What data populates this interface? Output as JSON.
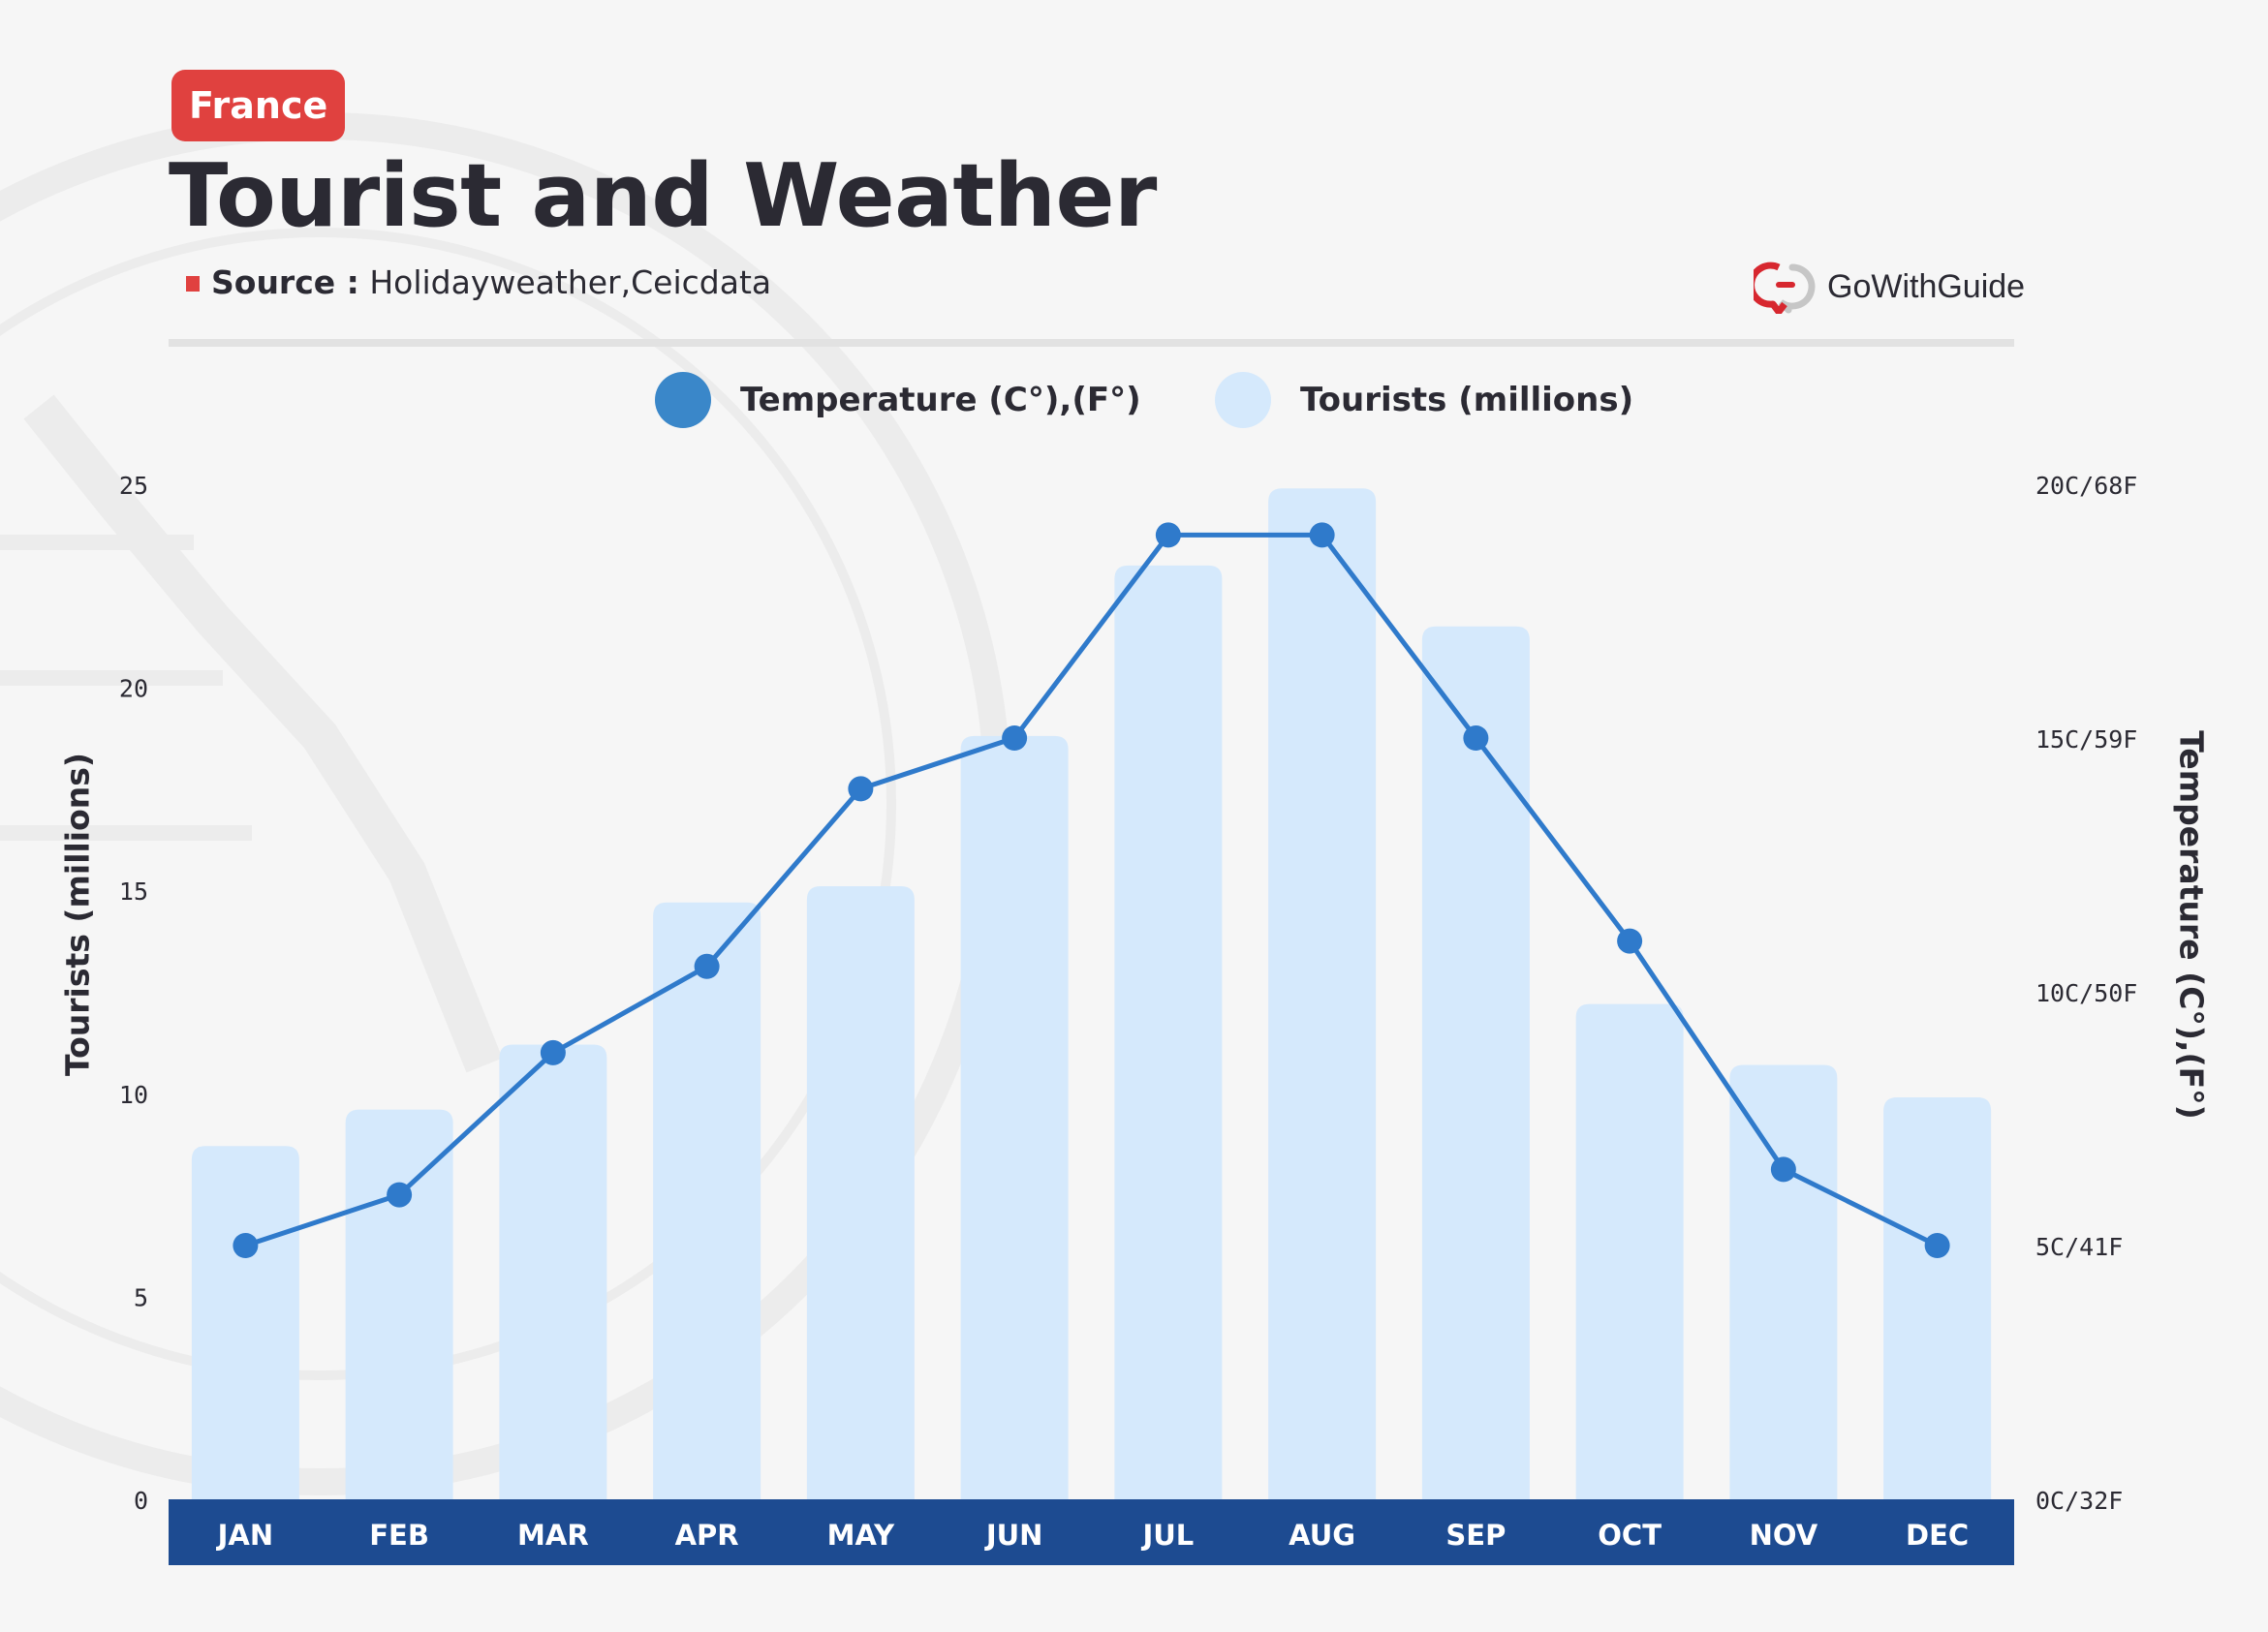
{
  "header": {
    "tag": "France",
    "title": "Tourist and Weather",
    "source_label": "Source :",
    "source_value": "Holidayweather,Ceicdata"
  },
  "brand": {
    "name": "GoWithGuide",
    "icon": "gowithguide-logo-icon"
  },
  "legend": {
    "temperature": "Temperature (C°),(F°)",
    "tourists": "Tourists (millions)"
  },
  "colors": {
    "tag": "#e0413f",
    "title": "#2b2a33",
    "bar": "#d5e9fc",
    "line": "#2f7acb",
    "legend_temperature": "#3a87c9",
    "axis_band": "#1d4b91"
  },
  "chart_data": {
    "type": "bar+line",
    "categories": [
      "JAN",
      "FEB",
      "MAR",
      "APR",
      "MAY",
      "JUN",
      "JUL",
      "AUG",
      "SEP",
      "OCT",
      "NOV",
      "DEC"
    ],
    "series": [
      {
        "name": "Tourists (millions)",
        "type": "bar",
        "axis": "left",
        "values": [
          8.7,
          9.6,
          11.2,
          14.7,
          15.1,
          18.8,
          23.0,
          24.9,
          21.5,
          12.2,
          10.7,
          9.9
        ]
      },
      {
        "name": "Temperature (C°),(F°)",
        "type": "line",
        "axis": "right",
        "values": [
          5.0,
          6.0,
          8.8,
          10.5,
          14.0,
          15.0,
          19.0,
          19.0,
          15.0,
          11.0,
          6.5,
          5.0
        ]
      }
    ],
    "ylabel": "Tourists (millions)",
    "y2label": "Temperature (C°),(F°)",
    "ylim": [
      0,
      25
    ],
    "yticks": [
      0,
      5,
      10,
      15,
      20,
      25
    ],
    "y2lim": [
      0,
      20
    ],
    "y2ticks": [
      {
        "value": 0,
        "label": "0C/32F"
      },
      {
        "value": 5,
        "label": "5C/41F"
      },
      {
        "value": 10,
        "label": "10C/50F"
      },
      {
        "value": 15,
        "label": "15C/59F"
      },
      {
        "value": 20,
        "label": "20C/68F"
      }
    ],
    "legend_position": "top-center",
    "grid": false
  }
}
